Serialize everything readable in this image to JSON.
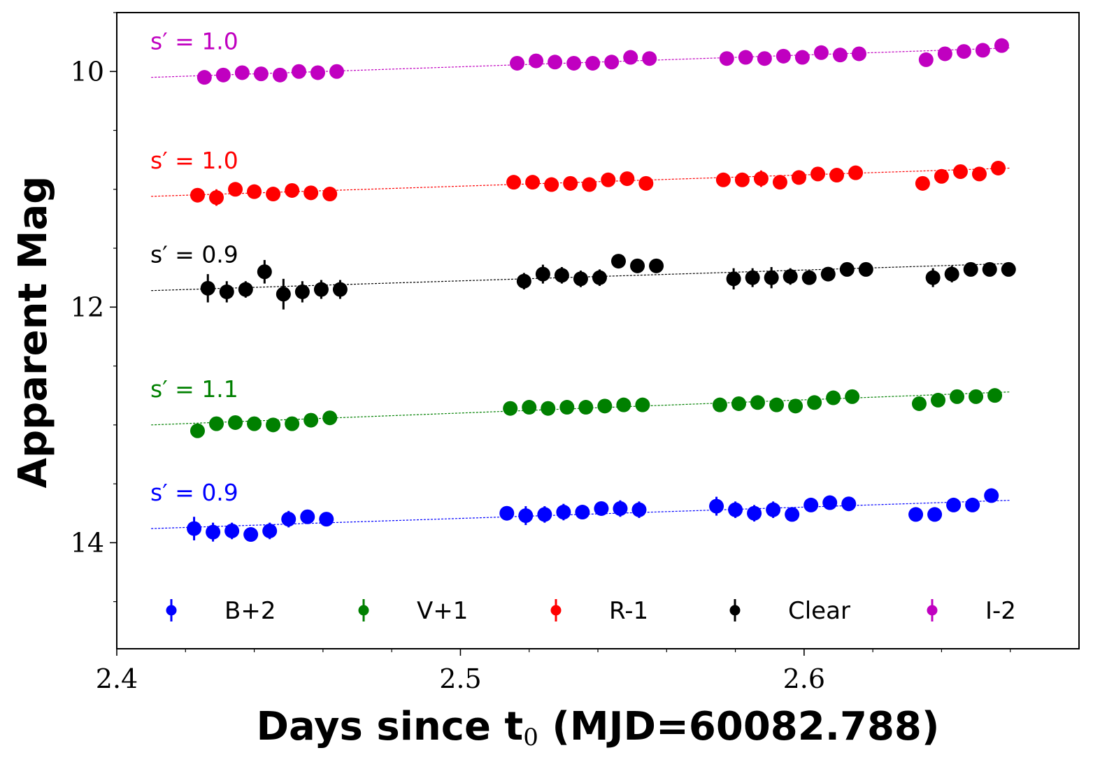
{
  "chart_data": {
    "type": "scatter",
    "title": "",
    "xlabel": "Days since t",
    "xlabel_sub": "0",
    "xlabel_suffix": " (MJD=60082.788)",
    "ylabel": "Apparent Mag",
    "xlim": [
      2.4,
      2.68
    ],
    "ylim": [
      14.9,
      9.5
    ],
    "y_inverted": true,
    "grid": false,
    "xticks": [
      2.4,
      2.5,
      2.6
    ],
    "xtick_labels": [
      "2.4",
      "2.5",
      "2.6"
    ],
    "x_minor_ticks": [
      2.42,
      2.44,
      2.46,
      2.48,
      2.52,
      2.54,
      2.56,
      2.58,
      2.62,
      2.64,
      2.66
    ],
    "yticks": [
      10,
      12,
      14
    ],
    "ytick_labels": [
      "10",
      "12",
      "14"
    ],
    "y_minor_ticks": [
      9.5,
      10.5,
      11,
      11.5,
      12.5,
      13,
      13.5,
      14.5
    ],
    "legend_position": "bottom",
    "series": [
      {
        "name": "B+2",
        "color": "#0000ff",
        "slope_label": "s′ = 0.9",
        "fit": {
          "x0": 2.41,
          "y0": 13.88,
          "x1": 2.66,
          "y1": 13.64
        },
        "x": [
          2.4225,
          2.428,
          2.4335,
          2.439,
          2.4445,
          2.45,
          2.4555,
          2.461,
          2.5135,
          2.519,
          2.5245,
          2.53,
          2.5355,
          2.541,
          2.5465,
          2.552,
          2.5745,
          2.58,
          2.5855,
          2.591,
          2.5965,
          2.602,
          2.6075,
          2.613,
          2.6325,
          2.638,
          2.6435,
          2.649,
          2.6545
        ],
        "y": [
          13.88,
          13.91,
          13.9,
          13.93,
          13.9,
          13.8,
          13.78,
          13.8,
          13.75,
          13.77,
          13.76,
          13.74,
          13.74,
          13.71,
          13.71,
          13.72,
          13.69,
          13.72,
          13.75,
          13.72,
          13.76,
          13.68,
          13.66,
          13.67,
          13.76,
          13.76,
          13.68,
          13.68,
          13.6
        ],
        "err": [
          0.1,
          0.08,
          0.07,
          0.06,
          0.07,
          0.07,
          0.06,
          0.06,
          0.06,
          0.08,
          0.07,
          0.07,
          0.06,
          0.06,
          0.07,
          0.07,
          0.08,
          0.07,
          0.07,
          0.07,
          0.06,
          0.06,
          0.06,
          0.06,
          0.05,
          0.05,
          0.05,
          0.06,
          0.04
        ]
      },
      {
        "name": "V+1",
        "color": "#008000",
        "slope_label": "s′ = 1.1",
        "fit": {
          "x0": 2.41,
          "y0": 13.0,
          "x1": 2.66,
          "y1": 12.72
        },
        "x": [
          2.4235,
          2.429,
          2.4345,
          2.44,
          2.4455,
          2.451,
          2.4565,
          2.462,
          2.5145,
          2.52,
          2.5255,
          2.531,
          2.5365,
          2.542,
          2.5475,
          2.553,
          2.5755,
          2.581,
          2.5865,
          2.592,
          2.5975,
          2.603,
          2.6085,
          2.614,
          2.6335,
          2.639,
          2.6445,
          2.65,
          2.6555
        ],
        "y": [
          13.05,
          12.99,
          12.98,
          12.99,
          13.0,
          12.99,
          12.96,
          12.94,
          12.86,
          12.85,
          12.86,
          12.85,
          12.85,
          12.84,
          12.83,
          12.83,
          12.83,
          12.82,
          12.81,
          12.83,
          12.84,
          12.81,
          12.77,
          12.76,
          12.82,
          12.79,
          12.76,
          12.76,
          12.75
        ],
        "err": [
          0.05,
          0.04,
          0.04,
          0.04,
          0.04,
          0.05,
          0.04,
          0.04,
          0.04,
          0.04,
          0.04,
          0.04,
          0.04,
          0.04,
          0.04,
          0.04,
          0.04,
          0.04,
          0.04,
          0.05,
          0.04,
          0.04,
          0.04,
          0.04,
          0.04,
          0.04,
          0.04,
          0.04,
          0.04
        ]
      },
      {
        "name": "R-1",
        "color": "#ff0000",
        "slope_label": "s′ = 1.0",
        "fit": {
          "x0": 2.41,
          "y0": 11.06,
          "x1": 2.66,
          "y1": 10.82
        },
        "x": [
          2.4235,
          2.429,
          2.4345,
          2.44,
          2.4455,
          2.451,
          2.4565,
          2.462,
          2.5155,
          2.521,
          2.5265,
          2.532,
          2.5375,
          2.543,
          2.5485,
          2.554,
          2.5765,
          2.582,
          2.5875,
          2.593,
          2.5985,
          2.604,
          2.6095,
          2.615,
          2.6345,
          2.64,
          2.6455,
          2.651,
          2.6565
        ],
        "y": [
          11.05,
          11.07,
          11.0,
          11.02,
          11.04,
          11.01,
          11.03,
          11.04,
          10.94,
          10.94,
          10.96,
          10.95,
          10.96,
          10.92,
          10.91,
          10.95,
          10.92,
          10.92,
          10.91,
          10.94,
          10.9,
          10.87,
          10.88,
          10.86,
          10.95,
          10.89,
          10.85,
          10.87,
          10.82
        ],
        "err": [
          0.04,
          0.07,
          0.04,
          0.04,
          0.04,
          0.04,
          0.06,
          0.05,
          0.04,
          0.04,
          0.04,
          0.04,
          0.04,
          0.04,
          0.04,
          0.04,
          0.05,
          0.06,
          0.07,
          0.04,
          0.06,
          0.04,
          0.04,
          0.04,
          0.04,
          0.04,
          0.04,
          0.04,
          0.04
        ]
      },
      {
        "name": "Clear",
        "color": "#000000",
        "slope_label": "s′ = 0.9",
        "fit": {
          "x0": 2.41,
          "y0": 11.86,
          "x1": 2.66,
          "y1": 11.63
        },
        "x": [
          2.4265,
          2.432,
          2.4375,
          2.443,
          2.4485,
          2.454,
          2.4595,
          2.465,
          2.5185,
          2.524,
          2.5295,
          2.535,
          2.5405,
          2.546,
          2.5515,
          2.557,
          2.5795,
          2.585,
          2.5905,
          2.596,
          2.6015,
          2.607,
          2.6125,
          2.618,
          2.6375,
          2.643,
          2.6485,
          2.654,
          2.6595
        ],
        "y": [
          11.84,
          11.87,
          11.85,
          11.7,
          11.89,
          11.87,
          11.85,
          11.85,
          11.78,
          11.72,
          11.73,
          11.76,
          11.75,
          11.61,
          11.65,
          11.65,
          11.76,
          11.75,
          11.75,
          11.74,
          11.75,
          11.72,
          11.68,
          11.68,
          11.75,
          11.72,
          11.68,
          11.68,
          11.68
        ],
        "err": [
          0.12,
          0.09,
          0.07,
          0.1,
          0.13,
          0.09,
          0.08,
          0.08,
          0.07,
          0.08,
          0.07,
          0.07,
          0.07,
          0.05,
          0.06,
          0.06,
          0.09,
          0.08,
          0.09,
          0.07,
          0.06,
          0.06,
          0.05,
          0.05,
          0.08,
          0.07,
          0.05,
          0.05,
          0.05
        ]
      },
      {
        "name": "I-2",
        "color": "#c000c0",
        "slope_label": "s′ = 1.0",
        "fit": {
          "x0": 2.41,
          "y0": 10.05,
          "x1": 2.66,
          "y1": 9.8
        },
        "x": [
          2.4255,
          2.431,
          2.4365,
          2.442,
          2.4475,
          2.453,
          2.4585,
          2.464,
          2.5165,
          2.522,
          2.5275,
          2.533,
          2.5385,
          2.544,
          2.5495,
          2.555,
          2.5775,
          2.583,
          2.5885,
          2.594,
          2.5995,
          2.605,
          2.6105,
          2.616,
          2.6355,
          2.641,
          2.6465,
          2.652,
          2.6575
        ],
        "y": [
          10.05,
          10.03,
          10.01,
          10.02,
          10.03,
          10.0,
          10.01,
          10.0,
          9.93,
          9.91,
          9.92,
          9.93,
          9.93,
          9.92,
          9.88,
          9.89,
          9.89,
          9.88,
          9.89,
          9.87,
          9.88,
          9.84,
          9.86,
          9.85,
          9.9,
          9.85,
          9.83,
          9.82,
          9.78
        ],
        "err": [
          0.03,
          0.03,
          0.03,
          0.03,
          0.03,
          0.03,
          0.03,
          0.03,
          0.03,
          0.03,
          0.03,
          0.03,
          0.03,
          0.03,
          0.03,
          0.03,
          0.03,
          0.03,
          0.03,
          0.03,
          0.03,
          0.03,
          0.03,
          0.03,
          0.03,
          0.03,
          0.03,
          0.03,
          0.03
        ]
      }
    ]
  }
}
